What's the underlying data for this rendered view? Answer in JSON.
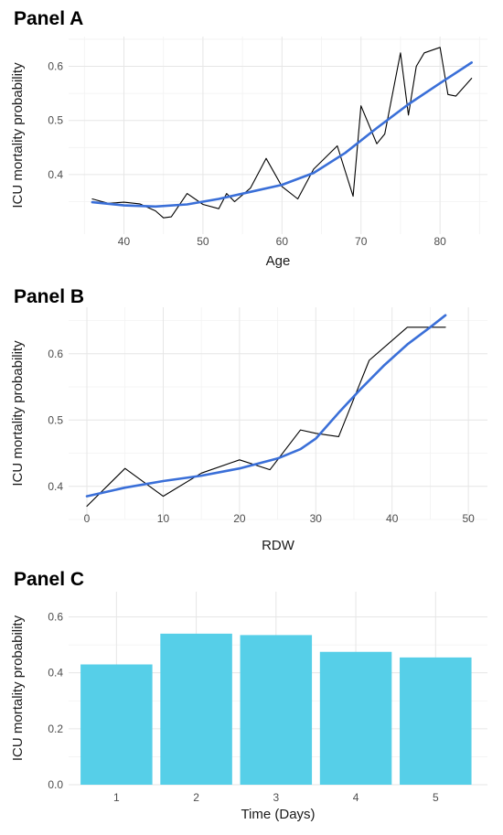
{
  "chart_data": [
    {
      "type": "line",
      "title": "Panel A",
      "xlabel": "Age",
      "ylabel": "ICU mortality probability",
      "xlim": [
        33,
        86
      ],
      "ylim": [
        0.29,
        0.655
      ],
      "x_ticks": [
        40,
        50,
        60,
        70,
        80
      ],
      "y_ticks": [
        0.4,
        0.5,
        0.6
      ],
      "grid": true,
      "series": [
        {
          "style": "observed",
          "color": "#000000",
          "x": [
            36,
            38,
            40,
            42,
            44,
            45,
            46,
            48,
            50,
            52,
            53,
            54,
            56,
            58,
            60,
            62,
            64,
            67,
            69,
            70,
            72,
            73,
            75,
            76,
            77,
            78,
            80,
            81,
            82,
            84
          ],
          "y": [
            0.355,
            0.347,
            0.349,
            0.346,
            0.333,
            0.32,
            0.322,
            0.365,
            0.345,
            0.337,
            0.365,
            0.35,
            0.375,
            0.43,
            0.378,
            0.355,
            0.41,
            0.453,
            0.36,
            0.527,
            0.457,
            0.475,
            0.625,
            0.51,
            0.6,
            0.625,
            0.635,
            0.548,
            0.545,
            0.578
          ]
        },
        {
          "style": "smooth",
          "color": "#3a6fd8",
          "x": [
            36,
            40,
            44,
            48,
            52,
            56,
            60,
            64,
            68,
            72,
            76,
            80,
            84
          ],
          "y": [
            0.349,
            0.343,
            0.341,
            0.345,
            0.355,
            0.368,
            0.381,
            0.403,
            0.44,
            0.486,
            0.53,
            0.569,
            0.607
          ]
        }
      ]
    },
    {
      "type": "line",
      "title": "Panel B",
      "xlabel": "RDW",
      "ylabel": "ICU mortality probability",
      "xlim": [
        -2.4,
        52.5
      ],
      "ylim": [
        0.35,
        0.67
      ],
      "x_ticks": [
        0,
        10,
        20,
        30,
        40,
        50
      ],
      "y_ticks": [
        0.4,
        0.5,
        0.6
      ],
      "grid": true,
      "series": [
        {
          "style": "observed",
          "color": "#000000",
          "x": [
            0,
            5,
            10,
            15,
            20,
            24,
            28,
            30,
            33,
            37,
            42,
            47
          ],
          "y": [
            0.37,
            0.427,
            0.385,
            0.42,
            0.44,
            0.425,
            0.485,
            0.48,
            0.475,
            0.59,
            0.64,
            0.64
          ]
        },
        {
          "style": "smooth",
          "color": "#3a6fd8",
          "x": [
            0,
            5,
            10,
            15,
            20,
            25,
            28,
            30,
            33,
            36,
            39,
            42,
            45,
            47
          ],
          "y": [
            0.385,
            0.398,
            0.408,
            0.416,
            0.427,
            0.442,
            0.456,
            0.472,
            0.511,
            0.548,
            0.583,
            0.614,
            0.64,
            0.658
          ]
        }
      ]
    },
    {
      "type": "bar",
      "title": "Panel C",
      "xlabel": "Time (Days)",
      "ylabel": "ICU mortality probability",
      "categories": [
        "1",
        "2",
        "3",
        "4",
        "5"
      ],
      "values": [
        0.43,
        0.54,
        0.535,
        0.475,
        0.455
      ],
      "color": "#56cfe8",
      "ylim": [
        0,
        0.69
      ],
      "y_ticks": [
        0.0,
        0.2,
        0.4,
        0.6
      ],
      "grid": true
    }
  ]
}
